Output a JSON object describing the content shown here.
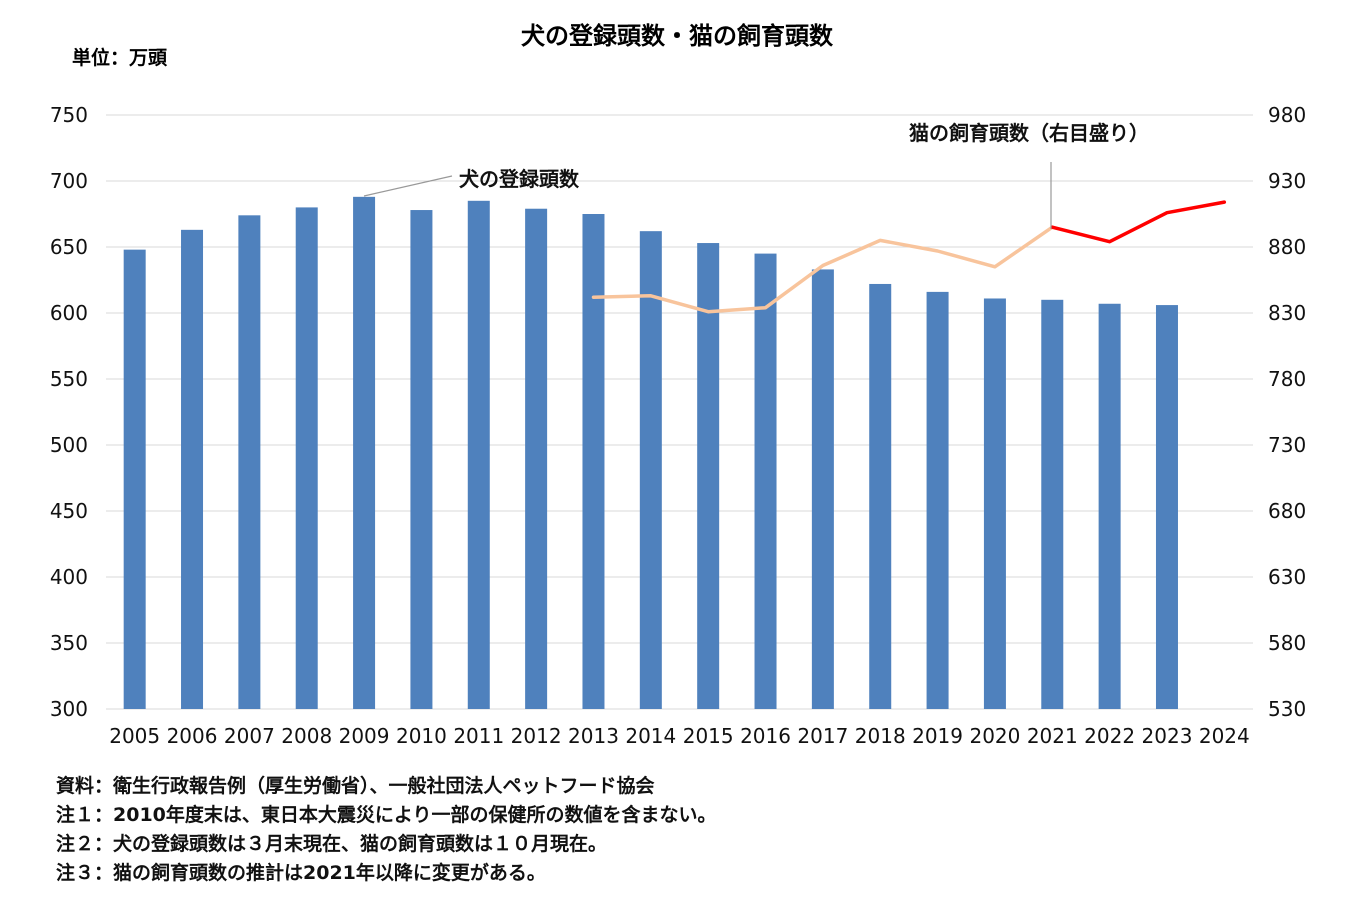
{
  "chart_data": {
    "type": "bar+line",
    "title": "犬の登録頭数・猫の飼育頭数",
    "unit_label": "単位：万頭",
    "categories": [
      "2005",
      "2006",
      "2007",
      "2008",
      "2009",
      "2010",
      "2011",
      "2012",
      "2013",
      "2014",
      "2015",
      "2016",
      "2017",
      "2018",
      "2019",
      "2020",
      "2021",
      "2022",
      "2023",
      "2024"
    ],
    "y_left": {
      "ticks": [
        "750",
        "700",
        "650",
        "600",
        "550",
        "500",
        "450",
        "400",
        "350",
        "300"
      ],
      "lim": [
        300,
        750
      ]
    },
    "y_right": {
      "ticks": [
        "980",
        "930",
        "880",
        "830",
        "780",
        "730",
        "680",
        "630",
        "580",
        "530"
      ],
      "lim": [
        530,
        980
      ]
    },
    "series": [
      {
        "name": "犬の登録頭数",
        "type": "bar",
        "axis": "left",
        "color": "#4f81bd",
        "values": [
          648,
          663,
          674,
          680,
          688,
          678,
          685,
          679,
          675,
          662,
          653,
          645,
          633,
          622,
          616,
          611,
          610,
          607,
          606,
          null
        ]
      },
      {
        "name": "猫の飼育頭数（右目盛り）",
        "type": "line",
        "axis": "right",
        "color_old": "#f8c49c",
        "color_new": "#ff0000",
        "old_method": [
          null,
          null,
          null,
          null,
          null,
          null,
          null,
          null,
          842,
          843,
          831,
          834,
          866,
          885,
          877,
          865,
          895,
          null,
          null,
          null
        ],
        "new_method": [
          null,
          null,
          null,
          null,
          null,
          null,
          null,
          null,
          null,
          null,
          null,
          null,
          null,
          null,
          null,
          null,
          895,
          884,
          906,
          914
        ]
      }
    ],
    "annotations": [
      "犬の登録頭数",
      "猫の飼育頭数（右目盛り）"
    ]
  },
  "notes": [
    "資料：衛生行政報告例（厚生労働省）、一般社団法人ペットフード協会",
    "注１：2010年度末は、東日本大震災により一部の保健所の数値を含まない。",
    "注２：犬の登録頭数は３月末現在、猫の飼育頭数は１０月現在。",
    "注３：猫の飼育頭数の推計は2021年以降に変更がある。"
  ]
}
